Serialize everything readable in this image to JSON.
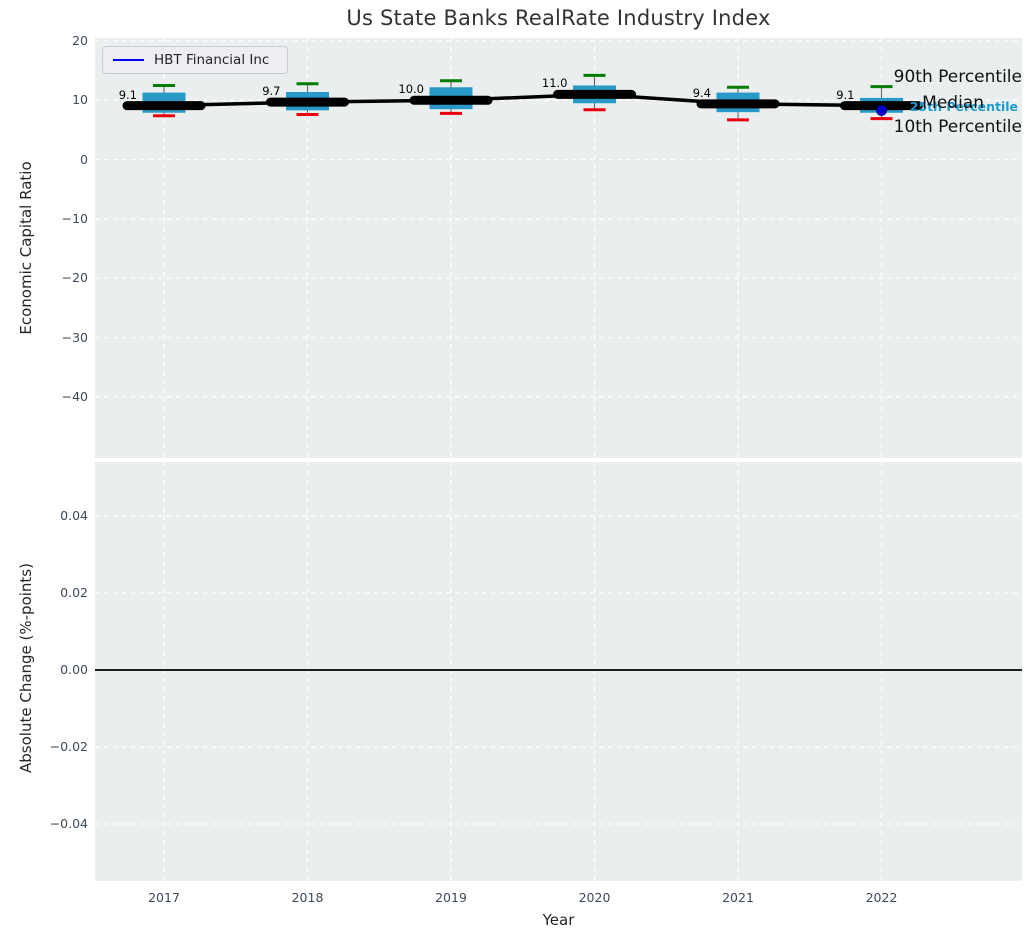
{
  "title": "Us State Banks RealRate Industry Index",
  "legend": {
    "label": "HBT Financial Inc"
  },
  "annotations": {
    "p90": "90th Percentile",
    "median": "Median",
    "p25": "25th Percentile",
    "p10": "10th Percentile"
  },
  "axes": {
    "top": {
      "ylabel": "Economic Capital Ratio"
    },
    "bottom": {
      "ylabel": "Absolute Change (%-points)",
      "xlabel": "Year"
    }
  },
  "colors": {
    "axes_bg": "#eaeeef",
    "grid": "#ffffff",
    "box_fill": "#299ac8",
    "whisker": "#666666",
    "cap_top": "#007d00",
    "cap_bottom": "#e8000b",
    "median_line": "#000000",
    "company_marker": "#0000cd",
    "legend_line": "#0000ee",
    "annotation_accent": "#1a9cd3",
    "zero_line": "#000000"
  },
  "chart_data": [
    {
      "type": "boxplot",
      "title": "Us State Banks RealRate Industry Index",
      "ylabel": "Economic Capital Ratio",
      "x": [
        2017,
        2018,
        2019,
        2020,
        2021,
        2022
      ],
      "median": [
        9.1,
        9.7,
        10.0,
        11.0,
        9.4,
        9.1
      ],
      "median_labels": [
        "9.1",
        "9.7",
        "10.0",
        "11.0",
        "9.4",
        "9.1"
      ],
      "p90": [
        12.5,
        12.8,
        13.3,
        14.2,
        12.2,
        12.3
      ],
      "p75": [
        11.3,
        11.4,
        12.2,
        12.5,
        11.3,
        10.4
      ],
      "p25": [
        7.9,
        8.3,
        8.5,
        9.5,
        8.0,
        7.9
      ],
      "p10": [
        7.4,
        7.6,
        7.8,
        8.4,
        6.7,
        6.9
      ],
      "company_point": {
        "name": "HBT Financial Inc",
        "x": 2022,
        "y": 8.3
      },
      "yticks": [
        20,
        10,
        0,
        -10,
        -20,
        -30,
        -40
      ],
      "ylim": [
        -50.3,
        20.6
      ],
      "grid": true,
      "legend_position": "upper left",
      "legend_entries": [
        "HBT Financial Inc"
      ],
      "percentile_labels": [
        "90th Percentile",
        "Median",
        "25th Percentile",
        "10th Percentile"
      ]
    },
    {
      "type": "line",
      "ylabel": "Absolute Change (%-points)",
      "xlabel": "Year",
      "x": [
        2017,
        2018,
        2019,
        2020,
        2021,
        2022
      ],
      "xtick_labels": [
        "2017",
        "2018",
        "2019",
        "2020",
        "2021",
        "2022"
      ],
      "yticks": [
        0.04,
        0.02,
        0.0,
        -0.02,
        -0.04
      ],
      "ylim": [
        -0.055,
        0.055
      ],
      "zero_line": 0.0,
      "series": [],
      "grid": true
    }
  ]
}
